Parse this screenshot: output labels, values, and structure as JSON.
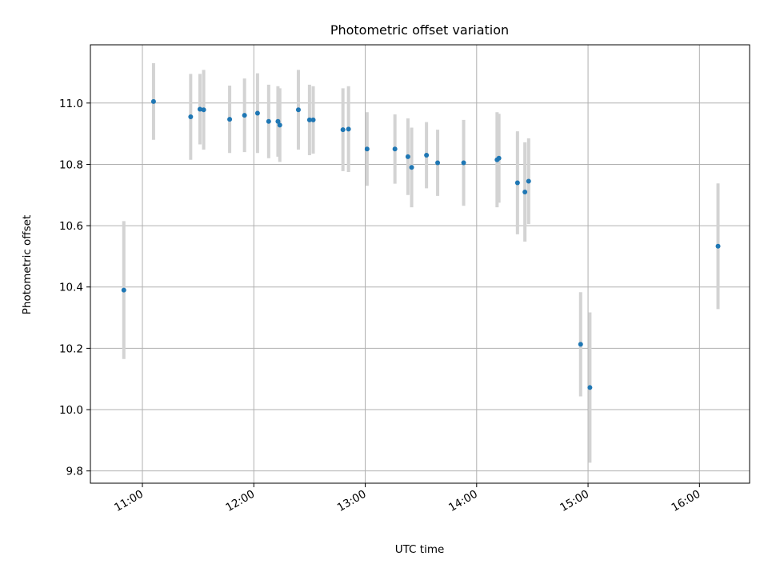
{
  "chart_data": {
    "type": "scatter",
    "title": "Photometric offset variation",
    "xlabel": "UTC time",
    "ylabel": "Photometric offset",
    "x_unit": "time of day (UTC)",
    "xlim": [
      "10:32",
      "16:27"
    ],
    "ylim": [
      9.76,
      11.19
    ],
    "x_ticks": [
      "11:00",
      "12:00",
      "13:00",
      "14:00",
      "15:00",
      "16:00"
    ],
    "y_ticks": [
      "9.8",
      "10.0",
      "10.2",
      "10.4",
      "10.6",
      "10.8",
      "11.0"
    ],
    "grid": true,
    "marker_color": "#1f77b4",
    "errorbar_color": "#d3d3d3",
    "points": [
      {
        "x": "10:50",
        "y": 10.39,
        "err": 0.225
      },
      {
        "x": "11:06",
        "y": 11.005,
        "err": 0.125
      },
      {
        "x": "11:26",
        "y": 10.955,
        "err": 0.14
      },
      {
        "x": "11:31",
        "y": 10.98,
        "err": 0.115
      },
      {
        "x": "11:33",
        "y": 10.978,
        "err": 0.13
      },
      {
        "x": "11:47",
        "y": 10.947,
        "err": 0.11
      },
      {
        "x": "11:55",
        "y": 10.96,
        "err": 0.12
      },
      {
        "x": "12:02",
        "y": 10.967,
        "err": 0.13
      },
      {
        "x": "12:08",
        "y": 10.94,
        "err": 0.12
      },
      {
        "x": "12:13",
        "y": 10.94,
        "err": 0.115
      },
      {
        "x": "12:14",
        "y": 10.928,
        "err": 0.12
      },
      {
        "x": "12:24",
        "y": 10.978,
        "err": 0.13
      },
      {
        "x": "12:30",
        "y": 10.945,
        "err": 0.115
      },
      {
        "x": "12:32",
        "y": 10.945,
        "err": 0.11
      },
      {
        "x": "12:48",
        "y": 10.913,
        "err": 0.135
      },
      {
        "x": "12:51",
        "y": 10.915,
        "err": 0.14
      },
      {
        "x": "13:01",
        "y": 10.85,
        "err": 0.12
      },
      {
        "x": "13:16",
        "y": 10.85,
        "err": 0.113
      },
      {
        "x": "13:23",
        "y": 10.825,
        "err": 0.125
      },
      {
        "x": "13:25",
        "y": 10.79,
        "err": 0.13
      },
      {
        "x": "13:33",
        "y": 10.83,
        "err": 0.108
      },
      {
        "x": "13:39",
        "y": 10.805,
        "err": 0.108
      },
      {
        "x": "13:53",
        "y": 10.805,
        "err": 0.14
      },
      {
        "x": "14:11",
        "y": 10.815,
        "err": 0.155
      },
      {
        "x": "14:12",
        "y": 10.82,
        "err": 0.145
      },
      {
        "x": "14:22",
        "y": 10.74,
        "err": 0.168
      },
      {
        "x": "14:26",
        "y": 10.71,
        "err": 0.162
      },
      {
        "x": "14:28",
        "y": 10.745,
        "err": 0.14
      },
      {
        "x": "14:56",
        "y": 10.213,
        "err": 0.17
      },
      {
        "x": "15:01",
        "y": 10.072,
        "err": 0.245
      },
      {
        "x": "16:10",
        "y": 10.533,
        "err": 0.205
      }
    ]
  }
}
